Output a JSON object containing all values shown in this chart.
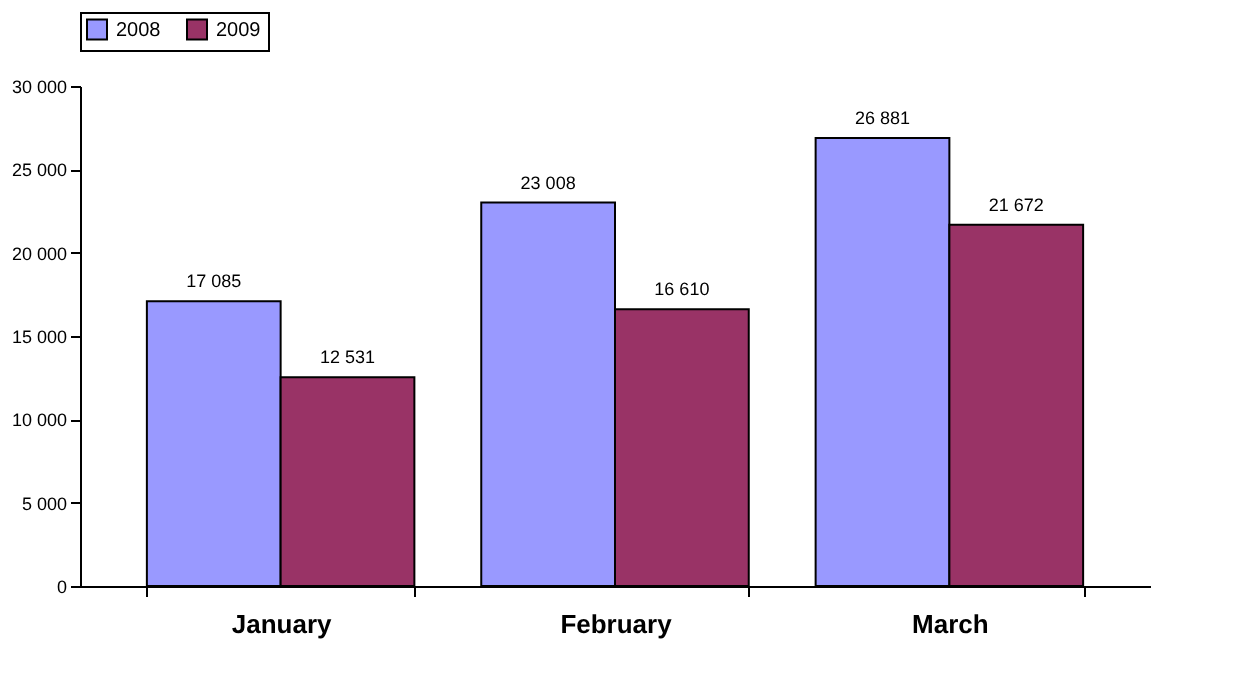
{
  "chart_data": {
    "type": "bar",
    "categories": [
      "January",
      "February",
      "March"
    ],
    "series": [
      {
        "name": "2008",
        "color": "#9999ff",
        "values": [
          17085,
          23008,
          26881
        ],
        "value_labels": [
          "17 085",
          "23 008",
          "26 881"
        ]
      },
      {
        "name": "2009",
        "color": "#993366",
        "values": [
          12531,
          16610,
          21672
        ],
        "value_labels": [
          "12 531",
          "16 610",
          "21 672"
        ]
      }
    ],
    "ylim": [
      0,
      30000
    ],
    "yticks": [
      0,
      {
        "value": 5000,
        "label": "5 000"
      },
      {
        "value": 10000,
        "label": "10 000"
      },
      {
        "value": 15000,
        "label": "15 000"
      },
      {
        "value": 20000,
        "label": "20 000"
      },
      {
        "value": 25000,
        "label": "25 000"
      },
      {
        "value": 30000,
        "label": "30 000"
      }
    ],
    "grid": false,
    "legend": "top"
  }
}
